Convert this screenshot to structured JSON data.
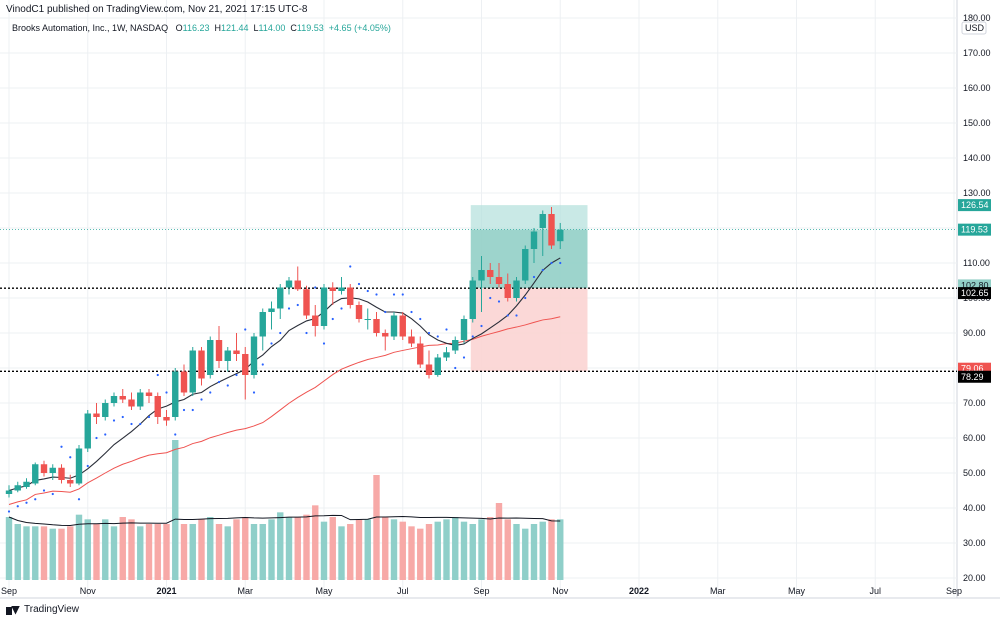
{
  "header": {
    "published_line": "VinodC1 published on TradingView.com, Nov 21, 2021 17:15 UTC-8",
    "symbol": "Brooks Automation, Inc., 1W, NASDAQ",
    "open_label": "O",
    "open": "116.23",
    "high_label": "H",
    "high": "121.44",
    "low_label": "L",
    "low": "114.00",
    "close_label": "C",
    "close": "119.53",
    "change": "+4.65 (+4.05%)"
  },
  "footer": {
    "brand": "TradingView",
    "logo_icon": "tradingview-logo-icon"
  },
  "chart_data": {
    "type": "candlestick",
    "currency": "USD",
    "ylim": [
      20,
      180
    ],
    "y_ticks": [
      "20.00",
      "30.00",
      "40.00",
      "50.00",
      "60.00",
      "70.00",
      "80.00",
      "90.00",
      "100.00",
      "110.00",
      "120.00",
      "130.00",
      "140.00",
      "150.00",
      "160.00",
      "170.00",
      "180.00"
    ],
    "x_ticks": [
      {
        "label": "Sep",
        "index": 0
      },
      {
        "label": "Nov",
        "index": 9
      },
      {
        "label": "2021",
        "index": 18
      },
      {
        "label": "Mar",
        "index": 27
      },
      {
        "label": "May",
        "index": 36
      },
      {
        "label": "Jul",
        "index": 45
      },
      {
        "label": "Sep",
        "index": 54
      },
      {
        "label": "Nov",
        "index": 63
      },
      {
        "label": "2022",
        "index": 72
      },
      {
        "label": "Mar",
        "index": 81
      },
      {
        "label": "May",
        "index": 90
      },
      {
        "label": "Jul",
        "index": 99
      },
      {
        "label": "Sep",
        "index": 108
      }
    ],
    "candles": [
      [
        44,
        46.5,
        43,
        45
      ],
      [
        45,
        47.5,
        44.5,
        46.5
      ],
      [
        46,
        48.5,
        45.5,
        47.5
      ],
      [
        47,
        53,
        46.5,
        52.5
      ],
      [
        52.5,
        53.5,
        49,
        50
      ],
      [
        50,
        52.5,
        48,
        51.5
      ],
      [
        51.5,
        52.5,
        47,
        48
      ],
      [
        48,
        49.5,
        46,
        47
      ],
      [
        47,
        58,
        46.5,
        57
      ],
      [
        57,
        68,
        56,
        67
      ],
      [
        67,
        70,
        64,
        66
      ],
      [
        66,
        71,
        65,
        70
      ],
      [
        70,
        73,
        69,
        72
      ],
      [
        72,
        74,
        70,
        71
      ],
      [
        71,
        73,
        68,
        69
      ],
      [
        69,
        74,
        68,
        73
      ],
      [
        73,
        74,
        70,
        72
      ],
      [
        72,
        73,
        64,
        66
      ],
      [
        66,
        68,
        63.5,
        65
      ],
      [
        66,
        80,
        65,
        79
      ],
      [
        79,
        81,
        72,
        73
      ],
      [
        73,
        86,
        72,
        85
      ],
      [
        85,
        86,
        75,
        77
      ],
      [
        78,
        89,
        77,
        88
      ],
      [
        88,
        92,
        80,
        82
      ],
      [
        82,
        86,
        79,
        85
      ],
      [
        85,
        90,
        82,
        84
      ],
      [
        84,
        86,
        71,
        78
      ],
      [
        78,
        90,
        77,
        89
      ],
      [
        89,
        97,
        85,
        96
      ],
      [
        96,
        99,
        91,
        97
      ],
      [
        97,
        104,
        94,
        103
      ],
      [
        103,
        106,
        101,
        105
      ],
      [
        105,
        109,
        102,
        102.5
      ],
      [
        102.5,
        103.5,
        94,
        95
      ],
      [
        95,
        98,
        89,
        92
      ],
      [
        92,
        104,
        91,
        103
      ],
      [
        103,
        104.5,
        98,
        102
      ],
      [
        102,
        106,
        101,
        103
      ],
      [
        103,
        104,
        97,
        98
      ],
      [
        98,
        99,
        93,
        94
      ],
      [
        94,
        97,
        91,
        94
      ],
      [
        94,
        96,
        89,
        90
      ],
      [
        90,
        91,
        85,
        89
      ],
      [
        89,
        96,
        88,
        95
      ],
      [
        95,
        96,
        88,
        89
      ],
      [
        89,
        91,
        86,
        87
      ],
      [
        87,
        89,
        80,
        81
      ],
      [
        81,
        85,
        77,
        78
      ],
      [
        78,
        84,
        77.5,
        83
      ],
      [
        83,
        86,
        82,
        84.5
      ],
      [
        85,
        89,
        84,
        88
      ],
      [
        88,
        95,
        87,
        94
      ],
      [
        94,
        106,
        93,
        105
      ],
      [
        105,
        112,
        96,
        108
      ],
      [
        108,
        110,
        104,
        106
      ],
      [
        106,
        110,
        103,
        104
      ],
      [
        104,
        107,
        99,
        100
      ],
      [
        100,
        106,
        99,
        105
      ],
      [
        105,
        115,
        104,
        114
      ],
      [
        114,
        120,
        110,
        119
      ],
      [
        120,
        125,
        112,
        124
      ],
      [
        124,
        126,
        114,
        115
      ],
      [
        116.23,
        121.44,
        114,
        119.53
      ]
    ],
    "volume": [
      27,
      24,
      23,
      23,
      23,
      22,
      22,
      23,
      28,
      26,
      24,
      26,
      23,
      27,
      26,
      23,
      24,
      24,
      24,
      60,
      24,
      24,
      26,
      27,
      24,
      23,
      26,
      27,
      24,
      24,
      26,
      29,
      27,
      27,
      28,
      32,
      25,
      27,
      23,
      24,
      26,
      26,
      45,
      27,
      26,
      25,
      23,
      22,
      24,
      25,
      26,
      27,
      25,
      24,
      26,
      27,
      33,
      26,
      24,
      22,
      24,
      25,
      26,
      26
    ],
    "volume_axis_max": 60,
    "indicators": {
      "parabolic_sar": true,
      "moving_average_fast": "dark",
      "moving_average_slow": "red",
      "volume_ma": true
    },
    "levels": {
      "current_price": "119.53",
      "target": "126.54",
      "entry": "102.80",
      "entry_alt": "102.65",
      "stop": "79.06",
      "stop_alt": "78.29"
    },
    "position_box": {
      "start_index": 53,
      "end_index": 66,
      "target": 126.54,
      "entry": 102.8,
      "stop": 79.06,
      "price": 119.53
    },
    "colors": {
      "up": "#26a69a",
      "down": "#ef5350",
      "up_volume": "#8fcfc9",
      "down_volume": "#f7a9a7",
      "target_zone": "#b2dfdb",
      "profit_zone": "#92cfc6",
      "stop_zone": "#fbd4d3",
      "grid": "#edf0f3",
      "axis_text": "#131722",
      "ma_fast": "#2a2e39",
      "ma_slow": "#ef5350",
      "sar": "#2962ff",
      "current_price_line": "#26a69a"
    }
  }
}
